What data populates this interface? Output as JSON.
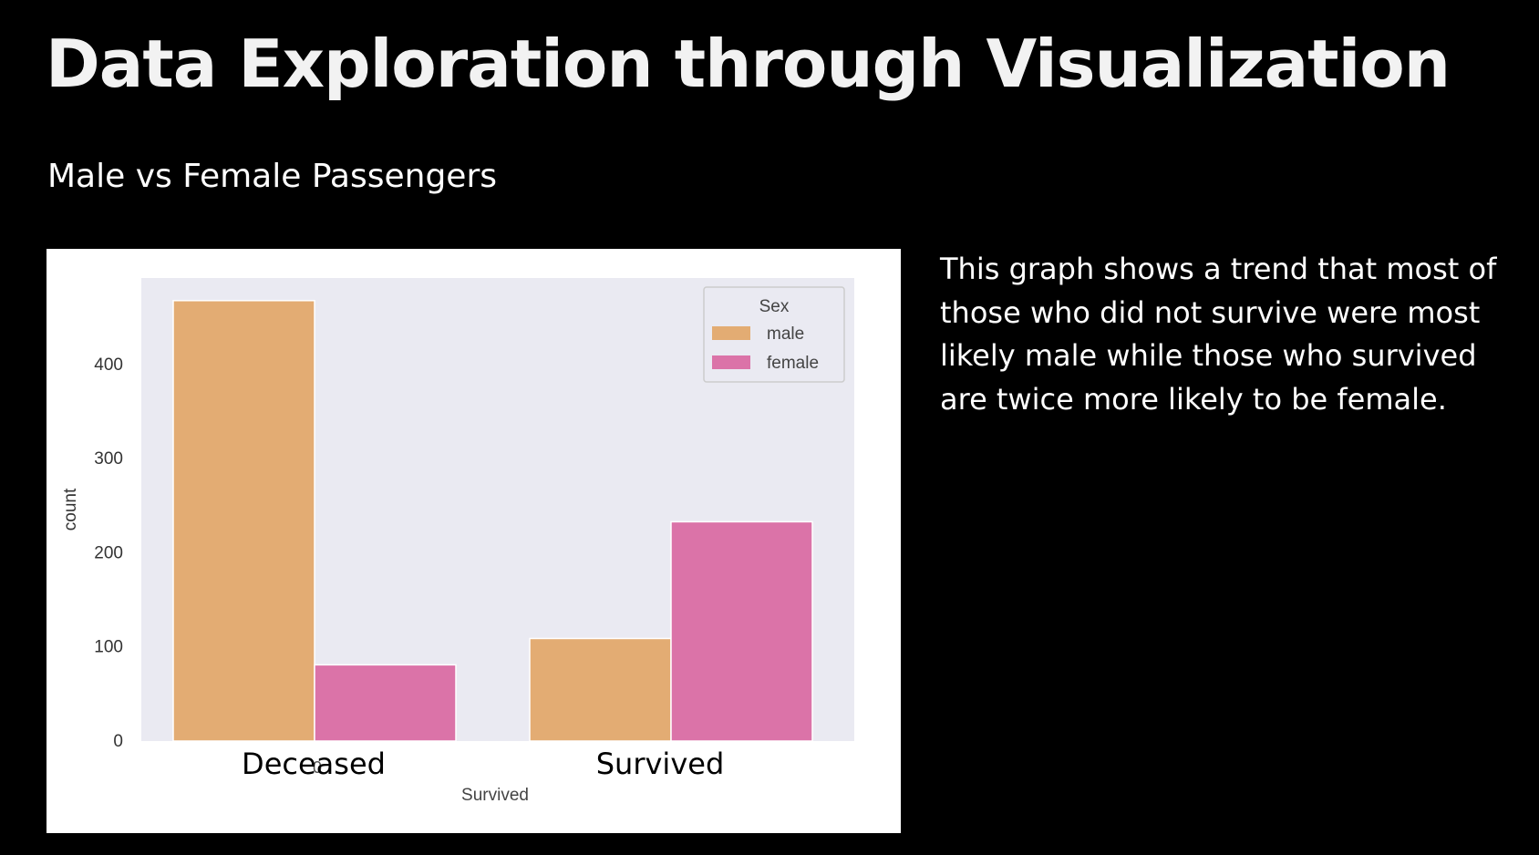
{
  "slide": {
    "title": "Data Exploration through Visualization",
    "subtitle": "Male vs Female Passengers",
    "description": "This graph shows a trend that most of those who did not survive were most likely male while those who survived are twice more likely to be female."
  },
  "colors": {
    "background": "#000000",
    "plot_background": "#eaeaf2",
    "male": "#e3ac73",
    "female": "#db73a8"
  },
  "chart_data": {
    "type": "bar",
    "title": "",
    "xlabel": "Survived",
    "ylabel": "count",
    "categories": [
      "Deceased",
      "Survived"
    ],
    "series": [
      {
        "name": "male",
        "values": [
          468,
          109
        ]
      },
      {
        "name": "female",
        "values": [
          81,
          233
        ]
      }
    ],
    "ylim": [
      0,
      492
    ],
    "yticks": [
      0,
      100,
      200,
      300,
      400
    ],
    "grid": false,
    "legend": {
      "title": "Sex",
      "position": "top-right",
      "entries": [
        "male",
        "female"
      ]
    },
    "overlay_tick_glyph": "0"
  }
}
